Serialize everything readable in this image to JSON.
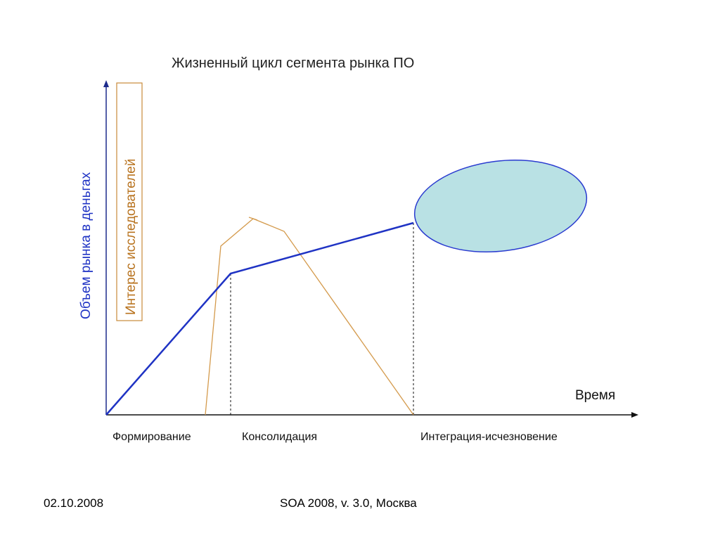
{
  "title": "Жизненный цикл сегмента рынка ПО",
  "y_axis_label": "Объем рынка в деньгах",
  "x_axis_label": "Время",
  "interest_label": "Интерес исследователей",
  "phases": [
    "Формирование",
    "Консолидация",
    "Интеграция-исчезновение"
  ],
  "colors": {
    "market_line": "#1f33c4",
    "interest_line": "#d49a4c",
    "ellipse_fill": "#b9e1e4",
    "axis": "#1c2a8c"
  },
  "footer": {
    "date": "02.10.2008",
    "center": "SOA 2008, v. 3.0, Москва"
  }
}
